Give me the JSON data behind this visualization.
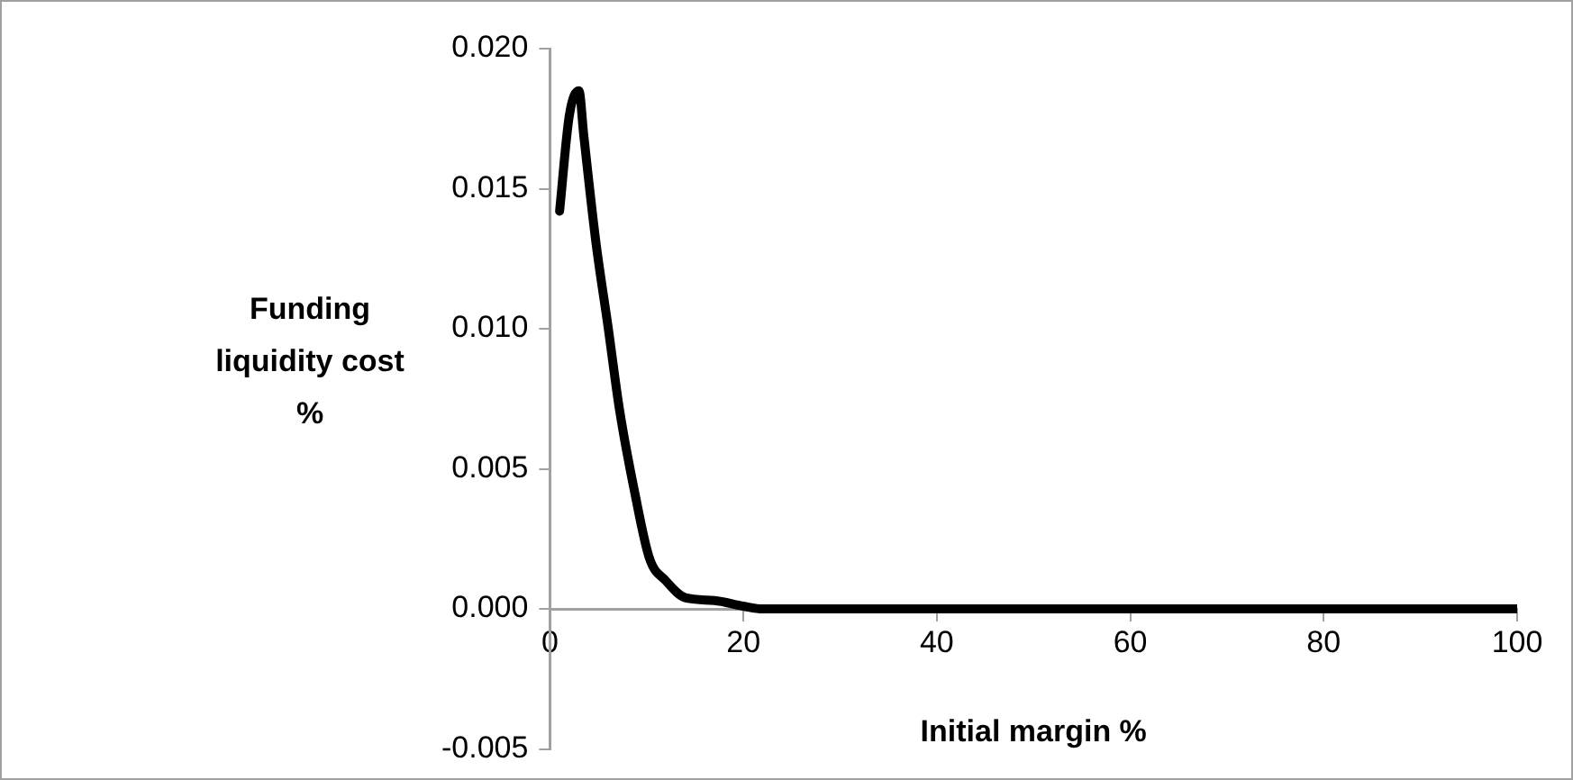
{
  "chart_data": {
    "type": "line",
    "xlabel": "Initial margin %",
    "ylabel": "Funding liquidity cost %",
    "series": [
      {
        "color": "#000000",
        "x": [
          1,
          2,
          3,
          3.5,
          4.75,
          6,
          7.2,
          8.8,
          10.3,
          12,
          14,
          17,
          20,
          22,
          30,
          40,
          50,
          60,
          70,
          80,
          90,
          100
        ],
        "values": [
          0.0142,
          0.0176,
          0.0185,
          0.0169,
          0.0131,
          0.0101,
          0.0071,
          0.0041,
          0.0018,
          0.001,
          0.0004,
          0.0003,
          0.0001,
          0,
          0,
          0,
          0,
          0,
          0,
          0,
          0,
          0
        ]
      }
    ],
    "xlim": [
      0,
      100
    ],
    "xticks": [
      0,
      20,
      40,
      60,
      80,
      100
    ],
    "ylim": [
      -0.005,
      0.02
    ],
    "yticks": [
      {
        "value": -0.005,
        "label": "-0.005"
      },
      {
        "value": 0,
        "label": "0.000"
      },
      {
        "value": 0.005,
        "label": "0.005"
      },
      {
        "value": 0.01,
        "label": "0.010"
      },
      {
        "value": 0.015,
        "label": "0.015"
      },
      {
        "value": 0.02,
        "label": "0.020"
      }
    ],
    "grid": false,
    "legend": false,
    "marker": "none",
    "line_style": "solid"
  }
}
